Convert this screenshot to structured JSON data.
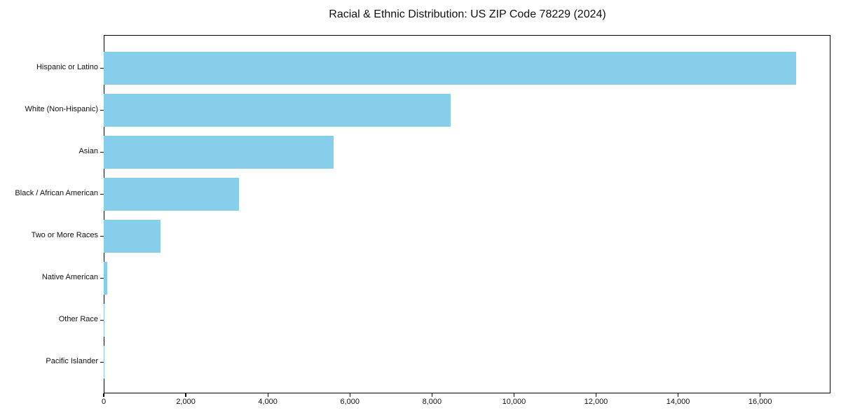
{
  "chart_data": {
    "type": "bar",
    "orientation": "horizontal",
    "title": "Racial & Ethnic Distribution: US ZIP Code 78229 (2024)",
    "categories": [
      "Hispanic or Latino",
      "White (Non-Hispanic)",
      "Asian",
      "Black / African American",
      "Two or More Races",
      "Native American",
      "Other Race",
      "Pacific Islander"
    ],
    "values": [
      16870,
      8450,
      5600,
      3290,
      1390,
      85,
      20,
      5
    ],
    "bar_color": "#87CEEB",
    "xlabel": "",
    "ylabel": "",
    "xlim": [
      0,
      17714
    ],
    "x_ticks": [
      0,
      2000,
      4000,
      6000,
      8000,
      10000,
      12000,
      14000,
      16000
    ],
    "x_tick_labels": [
      "0",
      "2,000",
      "4,000",
      "6,000",
      "8,000",
      "10,000",
      "12,000",
      "14,000",
      "16,000"
    ],
    "grid": false,
    "legend": null,
    "spine_color": "#000000",
    "background_color": "#ffffff"
  }
}
